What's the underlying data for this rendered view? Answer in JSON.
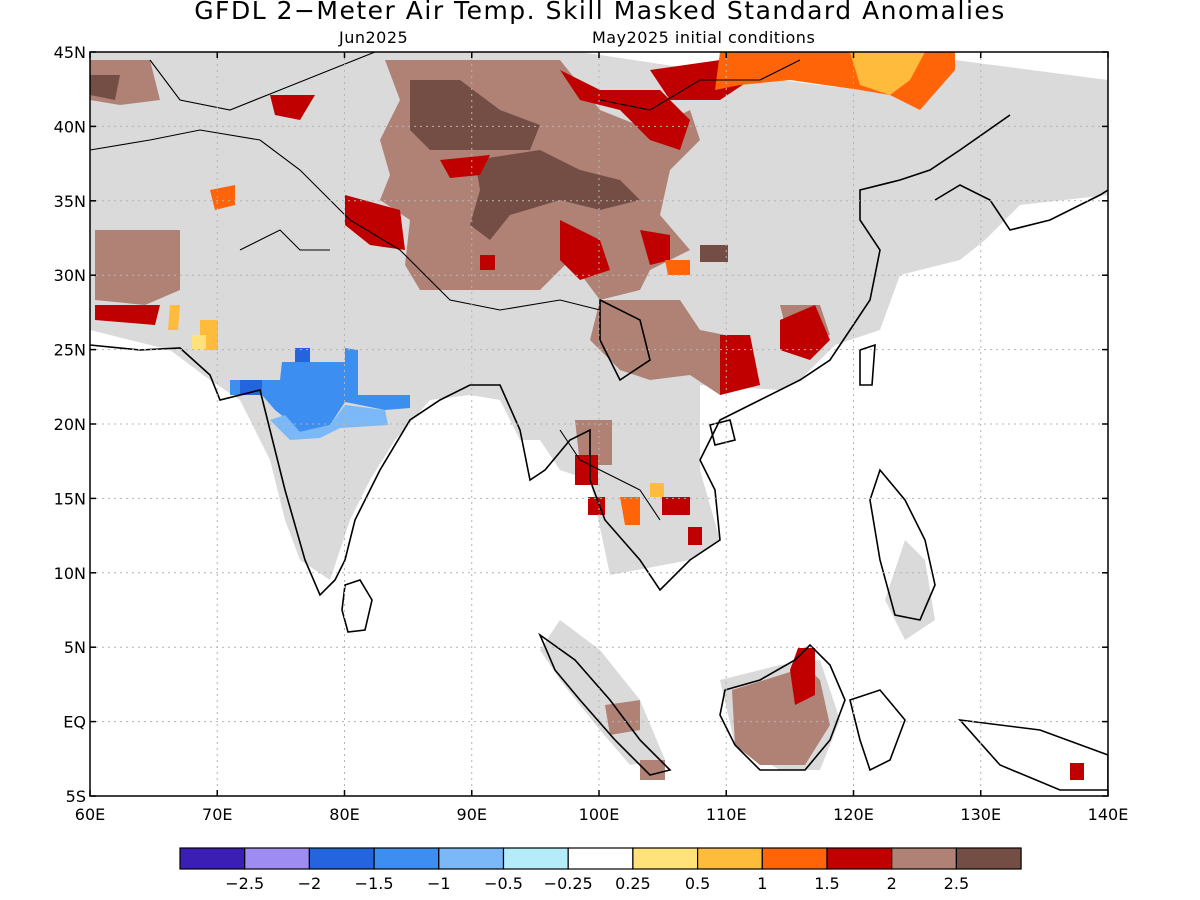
{
  "header": {
    "title": "GFDL 2−Meter Air Temp. Skill Masked Standard Anomalies",
    "valid_month": "Jun2025",
    "init_conditions": "May2025 initial conditions"
  },
  "map": {
    "lon_range": [
      60,
      140
    ],
    "lat_range": [
      -5,
      45
    ],
    "lon_labels": [
      "60E",
      "70E",
      "80E",
      "90E",
      "100E",
      "110E",
      "120E",
      "130E",
      "140E"
    ],
    "lat_labels": [
      "45N",
      "40N",
      "35N",
      "30N",
      "25N",
      "20N",
      "15N",
      "10N",
      "5N",
      "EQ",
      "5S"
    ]
  },
  "legend": {
    "colors": [
      "#3b1fb4",
      "#9f8cf3",
      "#2464dc",
      "#3c8ef0",
      "#7ab8f8",
      "#b4ecfa",
      "#ffffff",
      "#ffe37a",
      "#ffbb3c",
      "#ff6408",
      "#c00000",
      "#b08276",
      "#744e44"
    ],
    "labels": [
      "−2.5",
      "−2",
      "−1.5",
      "−1",
      "−0.5",
      "−0.25",
      "0.25",
      "0.5",
      "1",
      "1.5",
      "2",
      "2.5"
    ]
  }
}
